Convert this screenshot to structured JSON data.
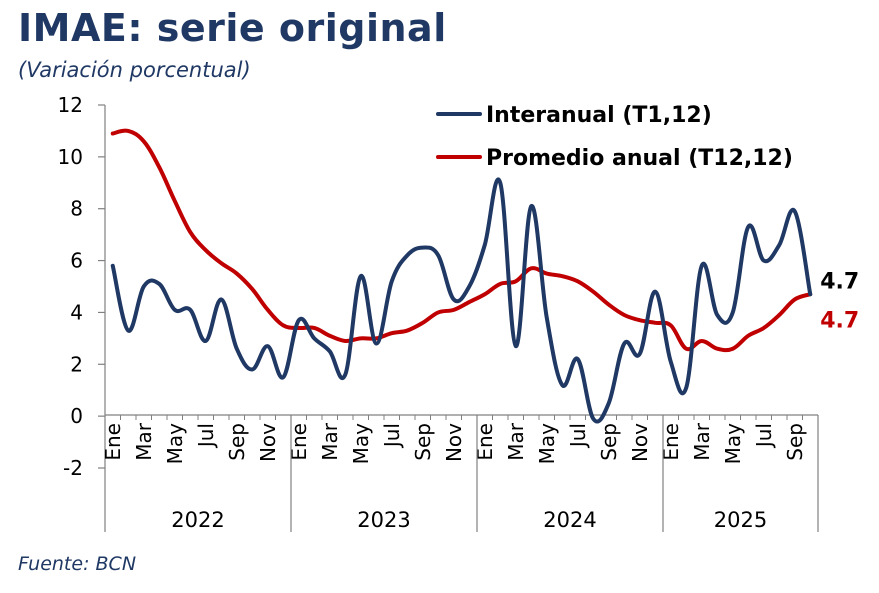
{
  "title": "IMAE: serie original",
  "subtitle": "(Variación porcentual)",
  "source": "Fuente: BCN",
  "colors": {
    "interanual": "#1F3864",
    "promedio": "#C00000",
    "title": "#1F3864"
  },
  "chart_data": {
    "type": "line",
    "title": "IMAE: serie original",
    "ylabel": "(Variación porcentual)",
    "ylim": [
      -2,
      12
    ],
    "yticks": [
      -2,
      0,
      2,
      4,
      6,
      8,
      10,
      12
    ],
    "month_labels": [
      "Ene",
      "Mar",
      "May",
      "Jul",
      "Sep",
      "Nov"
    ],
    "years": [
      "2022",
      "2023",
      "2024",
      "2025"
    ],
    "categories": [
      "Ene 2022",
      "Feb 2022",
      "Mar 2022",
      "Abr 2022",
      "May 2022",
      "Jun 2022",
      "Jul 2022",
      "Ago 2022",
      "Sep 2022",
      "Oct 2022",
      "Nov 2022",
      "Dic 2022",
      "Ene 2023",
      "Feb 2023",
      "Mar 2023",
      "Abr 2023",
      "May 2023",
      "Jun 2023",
      "Jul 2023",
      "Ago 2023",
      "Sep 2023",
      "Oct 2023",
      "Nov 2023",
      "Dic 2023",
      "Ene 2024",
      "Feb 2024",
      "Mar 2024",
      "Abr 2024",
      "May 2024",
      "Jun 2024",
      "Jul 2024",
      "Ago 2024",
      "Sep 2024",
      "Oct 2024",
      "Nov 2024",
      "Dic 2024",
      "Ene 2025",
      "Feb 2025",
      "Mar 2025",
      "Abr 2025",
      "May 2025",
      "Jun 2025",
      "Jul 2025",
      "Ago 2025",
      "Sep 2025",
      "Oct 2025"
    ],
    "series": [
      {
        "name": "Interanual (T1,12)",
        "end_label": "4.7",
        "values": [
          5.8,
          3.3,
          5.0,
          5.1,
          4.1,
          4.1,
          2.9,
          4.5,
          2.6,
          1.8,
          2.7,
          1.5,
          3.7,
          3.0,
          2.5,
          1.6,
          5.4,
          2.8,
          5.2,
          6.2,
          6.5,
          6.2,
          4.5,
          5.0,
          6.6,
          9.0,
          2.7,
          8.1,
          3.8,
          1.2,
          2.2,
          -0.1,
          0.5,
          2.8,
          2.4,
          4.8,
          2.1,
          1.1,
          5.8,
          3.9,
          4.0,
          7.3,
          6.0,
          6.6,
          7.9,
          4.7
        ]
      },
      {
        "name": "Promedio anual (T12,12)",
        "end_label": "4.7",
        "values": [
          10.9,
          11.0,
          10.6,
          9.6,
          8.3,
          7.1,
          6.4,
          5.9,
          5.5,
          4.9,
          4.1,
          3.5,
          3.4,
          3.4,
          3.1,
          2.9,
          3.0,
          3.0,
          3.2,
          3.3,
          3.6,
          4.0,
          4.1,
          4.4,
          4.7,
          5.1,
          5.2,
          5.7,
          5.5,
          5.4,
          5.2,
          4.8,
          4.3,
          3.9,
          3.7,
          3.6,
          3.5,
          2.6,
          2.9,
          2.6,
          2.6,
          3.1,
          3.4,
          3.9,
          4.5,
          4.7
        ]
      }
    ]
  }
}
